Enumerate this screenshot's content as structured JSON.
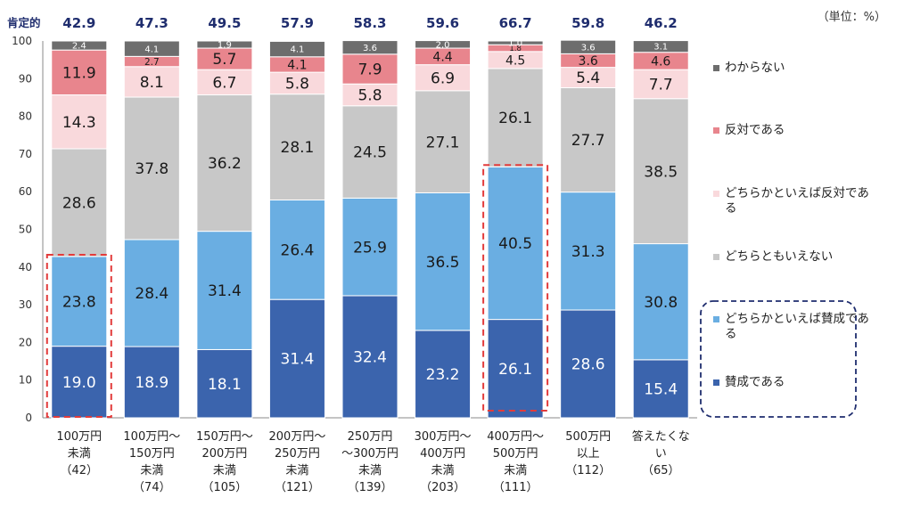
{
  "unit_label": "（単位：%）",
  "chart_data": {
    "type": "bar",
    "stacked": true,
    "ylim": [
      0,
      100
    ],
    "yticks": [
      0,
      10,
      20,
      30,
      40,
      50,
      60,
      70,
      80,
      90,
      100
    ],
    "positive_label": "肯定的",
    "positive_totals": [
      "42.9",
      "47.3",
      "49.5",
      "57.9",
      "58.3",
      "59.6",
      "66.7",
      "59.8",
      "46.2"
    ],
    "categories": [
      [
        "100万円",
        "未満",
        "（42）"
      ],
      [
        "100万円～",
        "150万円",
        "未満",
        "（74）"
      ],
      [
        "150万円～",
        "200万円",
        "未満",
        "（105）"
      ],
      [
        "200万円～",
        "250万円",
        "未満",
        "（121）"
      ],
      [
        "250万円",
        "～300万円",
        "未満",
        "（139）"
      ],
      [
        "300万円～",
        "400万円",
        "未満",
        "（203）"
      ],
      [
        "400万円～",
        "500万円",
        "未満",
        "（111）"
      ],
      [
        "500万円",
        "以上",
        "（112）"
      ],
      [
        "答えたくな",
        "い",
        "（65）"
      ]
    ],
    "series": [
      {
        "name": "賛成である",
        "color": "#3b64ad",
        "values": [
          19.0,
          18.9,
          18.1,
          31.4,
          32.4,
          23.2,
          26.1,
          28.6,
          15.4
        ]
      },
      {
        "name": "どちらかといえば賛成である",
        "color": "#6aaee2",
        "values": [
          23.8,
          28.4,
          31.4,
          26.4,
          25.9,
          36.5,
          40.5,
          31.3,
          30.8
        ]
      },
      {
        "name": "どちらともいえない",
        "color": "#c8c8c8",
        "values": [
          28.6,
          37.8,
          36.2,
          28.1,
          24.5,
          27.1,
          26.1,
          27.7,
          38.5
        ]
      },
      {
        "name": "どちらかといえば反対である",
        "color": "#f9d9dc",
        "values": [
          14.3,
          8.1,
          6.7,
          5.8,
          5.8,
          6.9,
          4.5,
          5.4,
          7.7
        ]
      },
      {
        "name": "反対である",
        "color": "#e8858d",
        "values": [
          11.9,
          2.7,
          5.7,
          4.1,
          7.9,
          4.4,
          1.8,
          3.6,
          4.6
        ]
      },
      {
        "name": "わからない",
        "color": "#6d6d6d",
        "values": [
          2.4,
          4.1,
          1.9,
          4.1,
          3.6,
          2.0,
          1.0,
          3.6,
          3.1
        ]
      }
    ],
    "highlighted_categories": [
      0,
      6
    ],
    "legend_position": "right"
  },
  "legend": [
    {
      "text": "わからない",
      "color": "#6d6d6d"
    },
    {
      "text": "反対である",
      "color": "#e8858d"
    },
    {
      "text": "どちらかといえば反対である",
      "color": "#f9d9dc"
    },
    {
      "text": "どちらともいえない",
      "color": "#c8c8c8"
    },
    {
      "text": "どちらかといえば賛成である",
      "color": "#6aaee2"
    },
    {
      "text": "賛成である",
      "color": "#3b64ad"
    }
  ]
}
